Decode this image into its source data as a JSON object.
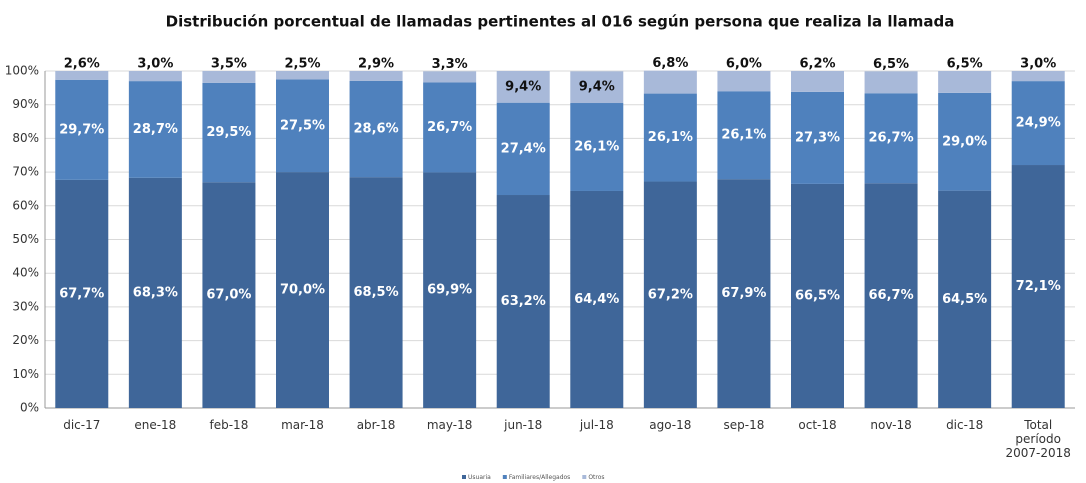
{
  "chart_data": {
    "type": "stacked_bar",
    "title": "Distribución porcentual de llamadas  pertinentes al 016 según persona que  realiza la llamada",
    "categories": [
      "dic-17",
      "ene-18",
      "feb-18",
      "mar-18",
      "abr-18",
      "may-18",
      "jun-18",
      "jul-18",
      "ago-18",
      "sep-18",
      "oct-18",
      "nov-18",
      "dic-18",
      "Total período 2007-2018"
    ],
    "series": [
      {
        "name": "Usuaria",
        "color": "#3f6699",
        "values": [
          67.7,
          68.3,
          67.0,
          70.0,
          68.5,
          69.9,
          63.2,
          64.4,
          67.2,
          67.9,
          66.5,
          66.7,
          64.5,
          72.1
        ],
        "value_labels": [
          "67,7%",
          "68,3%",
          "67,0%",
          "70,0%",
          "68,5%",
          "69,9%",
          "63,2%",
          "64,4%",
          "67,2%",
          "67,9%",
          "66,5%",
          "66,7%",
          "64,5%",
          "72,1%"
        ]
      },
      {
        "name": "Familiares/Allegados",
        "color": "#4f81bd",
        "values": [
          29.7,
          28.7,
          29.5,
          27.5,
          28.6,
          26.7,
          27.4,
          26.1,
          26.1,
          26.1,
          27.3,
          26.7,
          29.0,
          24.9
        ],
        "value_labels": [
          "29,7%",
          "28,7%",
          "29,5%",
          "27,5%",
          "28,6%",
          "26,7%",
          "27,4%",
          "26,1%",
          "26,1%",
          "26,1%",
          "27,3%",
          "26,7%",
          "29,0%",
          "24,9%"
        ]
      },
      {
        "name": "Otros",
        "color": "#a8b9d9",
        "values": [
          2.6,
          3.0,
          3.5,
          2.5,
          2.9,
          3.3,
          9.4,
          9.4,
          6.8,
          6.0,
          6.2,
          6.5,
          6.5,
          3.0
        ],
        "value_labels": [
          "2,6%",
          "3,0%",
          "3,5%",
          "2,5%",
          "2,9%",
          "3,3%",
          "9,4%",
          "9,4%",
          "6,8%",
          "6,0%",
          "6,2%",
          "6,5%",
          "6,5%",
          "3,0%"
        ]
      }
    ],
    "ylim": [
      0,
      100
    ],
    "yticks": [
      {
        "value": 0,
        "label": "0%"
      },
      {
        "value": 10,
        "label": "10%"
      },
      {
        "value": 20,
        "label": "20%"
      },
      {
        "value": 30,
        "label": "30%"
      },
      {
        "value": 40,
        "label": "40%"
      },
      {
        "value": 50,
        "label": "50%"
      },
      {
        "value": 60,
        "label": "60%"
      },
      {
        "value": 70,
        "label": "70%"
      },
      {
        "value": 80,
        "label": "80%"
      },
      {
        "value": 90,
        "label": "90%"
      },
      {
        "value": 100,
        "label": "100%"
      }
    ],
    "grid": true,
    "legend": "bottom"
  }
}
